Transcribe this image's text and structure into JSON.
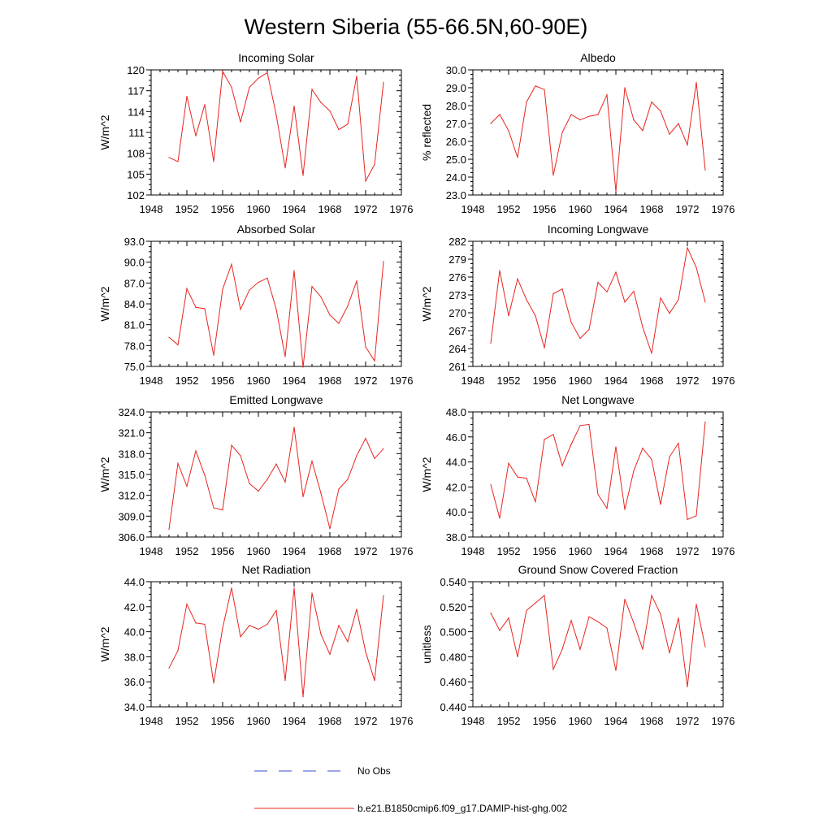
{
  "figure": {
    "title": "Western Siberia (55-66.5N,60-90E)"
  },
  "legend": {
    "items": [
      {
        "label": "No Obs",
        "color": "#3b4fcf",
        "style": "dashed"
      },
      {
        "label": "b.e21.B1850cmip6.f09_g17.DAMIP-hist-ghg.002",
        "color": "#e8241f",
        "style": "solid"
      }
    ]
  },
  "colors": {
    "series": "#e8241f",
    "axis": "#000000"
  },
  "chart_data": [
    {
      "type": "line",
      "title": "Incoming Solar",
      "ylabel": "W/m^2",
      "xlim": [
        1948,
        1976
      ],
      "xticks": [
        1948,
        1952,
        1956,
        1960,
        1964,
        1968,
        1972,
        1976
      ],
      "ylim": [
        102,
        120
      ],
      "yticks": [
        102,
        105,
        108,
        111,
        114,
        117,
        120
      ],
      "ytick_labels": [
        "102",
        "105",
        "108",
        "111",
        "114",
        "117",
        "120"
      ],
      "x": [
        1950,
        1951,
        1952,
        1953,
        1954,
        1955,
        1956,
        1957,
        1958,
        1959,
        1960,
        1961,
        1962,
        1963,
        1964,
        1965,
        1966,
        1967,
        1968,
        1969,
        1970,
        1971,
        1972,
        1973,
        1974
      ],
      "series": [
        {
          "values": [
            107.4,
            106.8,
            116.2,
            110.5,
            115.0,
            106.8,
            119.8,
            117.5,
            112.5,
            117.5,
            118.8,
            119.6,
            113.5,
            105.9,
            114.8,
            104.8,
            117.2,
            115.3,
            114.1,
            111.4,
            112.2,
            119.1,
            104.0,
            106.4,
            118.2
          ]
        }
      ]
    },
    {
      "type": "line",
      "title": "Albedo",
      "ylabel": "% reflected",
      "xlim": [
        1948,
        1976
      ],
      "xticks": [
        1948,
        1952,
        1956,
        1960,
        1964,
        1968,
        1972,
        1976
      ],
      "ylim": [
        23.0,
        30.0
      ],
      "yticks": [
        23,
        24,
        25,
        26,
        27,
        28,
        29,
        30
      ],
      "ytick_labels": [
        "23.0",
        "24.0",
        "25.0",
        "26.0",
        "27.0",
        "28.0",
        "29.0",
        "30.0"
      ],
      "x": [
        1950,
        1951,
        1952,
        1953,
        1954,
        1955,
        1956,
        1957,
        1958,
        1959,
        1960,
        1961,
        1962,
        1963,
        1964,
        1965,
        1966,
        1967,
        1968,
        1969,
        1970,
        1971,
        1972,
        1973,
        1974
      ],
      "series": [
        {
          "values": [
            27.0,
            27.5,
            26.6,
            25.1,
            28.2,
            29.1,
            28.9,
            24.1,
            26.5,
            27.5,
            27.2,
            27.4,
            27.5,
            28.6,
            23.2,
            29.0,
            27.2,
            26.6,
            28.2,
            27.7,
            26.4,
            27.0,
            25.8,
            29.3,
            24.4
          ]
        }
      ]
    },
    {
      "type": "line",
      "title": "Absorbed Solar",
      "ylabel": "W/m^2",
      "xlim": [
        1948,
        1976
      ],
      "xticks": [
        1948,
        1952,
        1956,
        1960,
        1964,
        1968,
        1972,
        1976
      ],
      "ylim": [
        75.0,
        93.0
      ],
      "yticks": [
        75,
        78,
        81,
        84,
        87,
        90,
        93
      ],
      "ytick_labels": [
        "75.0",
        "78.0",
        "81.0",
        "84.0",
        "87.0",
        "90.0",
        "93.0"
      ],
      "x": [
        1950,
        1951,
        1952,
        1953,
        1954,
        1955,
        1956,
        1957,
        1958,
        1959,
        1960,
        1961,
        1962,
        1963,
        1964,
        1965,
        1966,
        1967,
        1968,
        1969,
        1970,
        1971,
        1972,
        1973,
        1974
      ],
      "series": [
        {
          "values": [
            79.2,
            78.1,
            86.2,
            83.5,
            83.3,
            76.6,
            86.1,
            89.7,
            83.2,
            86.0,
            87.1,
            87.7,
            83.2,
            76.4,
            88.8,
            74.9,
            86.5,
            85.0,
            82.4,
            81.2,
            83.7,
            87.3,
            77.8,
            75.8,
            90.1
          ]
        }
      ]
    },
    {
      "type": "line",
      "title": "Incoming Longwave",
      "ylabel": "W/m^2",
      "xlim": [
        1948,
        1976
      ],
      "xticks": [
        1948,
        1952,
        1956,
        1960,
        1964,
        1968,
        1972,
        1976
      ],
      "ylim": [
        261,
        282
      ],
      "yticks": [
        261,
        264,
        267,
        270,
        273,
        276,
        279,
        282
      ],
      "ytick_labels": [
        "261",
        "264",
        "267",
        "270",
        "273",
        "276",
        "279",
        "282"
      ],
      "x": [
        1950,
        1951,
        1952,
        1953,
        1954,
        1955,
        1956,
        1957,
        1958,
        1959,
        1960,
        1961,
        1962,
        1963,
        1964,
        1965,
        1966,
        1967,
        1968,
        1969,
        1970,
        1971,
        1972,
        1973,
        1974
      ],
      "series": [
        {
          "values": [
            264.9,
            277.1,
            269.5,
            275.7,
            272.2,
            269.5,
            264.1,
            273.2,
            274.0,
            268.4,
            265.7,
            267.2,
            275.1,
            273.5,
            276.8,
            271.8,
            273.6,
            267.6,
            263.2,
            272.5,
            269.9,
            272.2,
            280.9,
            277.6,
            271.8
          ]
        }
      ]
    },
    {
      "type": "line",
      "title": "Emitted Longwave",
      "ylabel": "W/m^2",
      "xlim": [
        1948,
        1976
      ],
      "xticks": [
        1948,
        1952,
        1956,
        1960,
        1964,
        1968,
        1972,
        1976
      ],
      "ylim": [
        306.0,
        324.0
      ],
      "yticks": [
        306,
        309,
        312,
        315,
        318,
        321,
        324
      ],
      "ytick_labels": [
        "306.0",
        "309.0",
        "312.0",
        "315.0",
        "318.0",
        "321.0",
        "324.0"
      ],
      "x": [
        1950,
        1951,
        1952,
        1953,
        1954,
        1955,
        1956,
        1957,
        1958,
        1959,
        1960,
        1961,
        1962,
        1963,
        1964,
        1965,
        1966,
        1967,
        1968,
        1969,
        1970,
        1971,
        1972,
        1973,
        1974
      ],
      "series": [
        {
          "values": [
            307.1,
            316.6,
            313.3,
            318.4,
            314.9,
            310.2,
            309.9,
            319.2,
            317.7,
            313.7,
            312.6,
            314.3,
            316.5,
            313.9,
            321.8,
            311.8,
            316.9,
            312.3,
            307.2,
            312.9,
            314.3,
            317.7,
            320.2,
            317.3,
            318.7
          ]
        }
      ]
    },
    {
      "type": "line",
      "title": "Net Longwave",
      "ylabel": "W/m^2",
      "xlim": [
        1948,
        1976
      ],
      "xticks": [
        1948,
        1952,
        1956,
        1960,
        1964,
        1968,
        1972,
        1976
      ],
      "ylim": [
        38.0,
        48.0
      ],
      "yticks": [
        38,
        40,
        42,
        44,
        46,
        48
      ],
      "ytick_labels": [
        "38.0",
        "40.0",
        "42.0",
        "44.0",
        "46.0",
        "48.0"
      ],
      "x": [
        1950,
        1951,
        1952,
        1953,
        1954,
        1955,
        1956,
        1957,
        1958,
        1959,
        1960,
        1961,
        1962,
        1963,
        1964,
        1965,
        1966,
        1967,
        1968,
        1969,
        1970,
        1971,
        1972,
        1973,
        1974
      ],
      "series": [
        {
          "values": [
            42.2,
            39.5,
            43.9,
            42.8,
            42.7,
            40.8,
            45.8,
            46.2,
            43.7,
            45.4,
            46.9,
            47.0,
            41.4,
            40.3,
            45.2,
            40.2,
            43.3,
            45.1,
            44.2,
            40.6,
            44.4,
            45.5,
            39.4,
            39.7,
            47.2
          ]
        }
      ]
    },
    {
      "type": "line",
      "title": "Net Radiation",
      "ylabel": "W/m^2",
      "xlim": [
        1948,
        1976
      ],
      "xticks": [
        1948,
        1952,
        1956,
        1960,
        1964,
        1968,
        1972,
        1976
      ],
      "ylim": [
        34.0,
        44.0
      ],
      "yticks": [
        34,
        36,
        38,
        40,
        42,
        44
      ],
      "ytick_labels": [
        "34.0",
        "36.0",
        "38.0",
        "40.0",
        "42.0",
        "44.0"
      ],
      "x": [
        1950,
        1951,
        1952,
        1953,
        1954,
        1955,
        1956,
        1957,
        1958,
        1959,
        1960,
        1961,
        1962,
        1963,
        1964,
        1965,
        1966,
        1967,
        1968,
        1969,
        1970,
        1971,
        1972,
        1973,
        1974
      ],
      "series": [
        {
          "values": [
            37.1,
            38.5,
            42.2,
            40.7,
            40.6,
            35.9,
            40.3,
            43.5,
            39.6,
            40.5,
            40.2,
            40.6,
            41.7,
            36.1,
            43.5,
            34.8,
            43.1,
            39.8,
            38.2,
            40.5,
            39.2,
            41.8,
            38.4,
            36.1,
            42.9
          ]
        }
      ]
    },
    {
      "type": "line",
      "title": "Ground Snow Covered Fraction",
      "ylabel": "unitless",
      "xlim": [
        1948,
        1976
      ],
      "xticks": [
        1948,
        1952,
        1956,
        1960,
        1964,
        1968,
        1972,
        1976
      ],
      "ylim": [
        0.44,
        0.54
      ],
      "yticks": [
        0.44,
        0.46,
        0.48,
        0.5,
        0.52,
        0.54
      ],
      "ytick_labels": [
        "0.440",
        "0.460",
        "0.480",
        "0.500",
        "0.520",
        "0.540"
      ],
      "x": [
        1950,
        1951,
        1952,
        1953,
        1954,
        1955,
        1956,
        1957,
        1958,
        1959,
        1960,
        1961,
        1962,
        1963,
        1964,
        1965,
        1966,
        1967,
        1968,
        1969,
        1970,
        1971,
        1972,
        1973,
        1974
      ],
      "series": [
        {
          "values": [
            0.515,
            0.501,
            0.511,
            0.48,
            0.517,
            0.523,
            0.529,
            0.47,
            0.486,
            0.509,
            0.486,
            0.512,
            0.508,
            0.503,
            0.469,
            0.526,
            0.507,
            0.486,
            0.529,
            0.514,
            0.483,
            0.511,
            0.456,
            0.522,
            0.488
          ]
        }
      ]
    }
  ]
}
